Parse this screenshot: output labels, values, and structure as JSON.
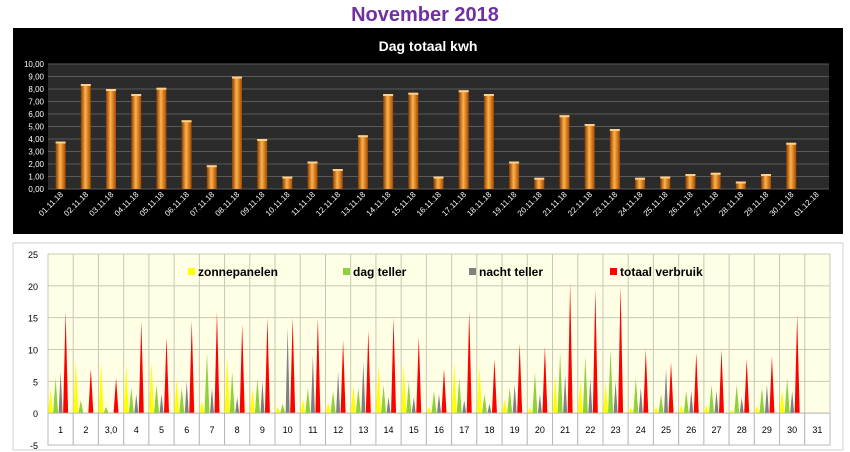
{
  "page": {
    "title": "November 2018",
    "title_color": "#7030A0"
  },
  "chart_data": [
    {
      "type": "bar",
      "title": "Dag totaal kwh",
      "background": "#000000",
      "plot_background": "#2b2b2b",
      "bar_color": "#F08A1C",
      "grid": true,
      "ylim": [
        0,
        10
      ],
      "ytick_labels": [
        "0,00",
        "1,00",
        "2,00",
        "3,00",
        "4,00",
        "5,00",
        "6,00",
        "7,00",
        "8,00",
        "9,00",
        "10,00"
      ],
      "categories": [
        "01.11.18",
        "02.11.18",
        "03.11.18",
        "04.11.18",
        "05.11.18",
        "06.11.18",
        "07.11.18",
        "08.11.18",
        "09.11.18",
        "10.11.18",
        "11.11.18",
        "12.11.18",
        "13.11.18",
        "14.11.18",
        "15.11.18",
        "16.11.18",
        "17.11.18",
        "18.11.18",
        "19.11.18",
        "20.11.18",
        "21.11.18",
        "22.11.18",
        "23.11.18",
        "24.11.18",
        "25.11.18",
        "26.11.18",
        "27.11.18",
        "28.11.18",
        "29.11.18",
        "30.11.18",
        "01.12.18"
      ],
      "values": [
        3.8,
        8.4,
        8.0,
        7.6,
        8.1,
        5.5,
        1.9,
        9.0,
        4.0,
        1.0,
        2.2,
        1.6,
        4.3,
        7.6,
        7.7,
        1.0,
        7.9,
        7.6,
        2.2,
        0.9,
        5.9,
        5.2,
        4.8,
        0.9,
        1.0,
        1.2,
        1.3,
        0.6,
        1.2,
        3.7,
        0
      ]
    },
    {
      "type": "area",
      "background": "#FFFFE6",
      "grid": true,
      "ylim": [
        -5,
        25
      ],
      "yticks": [
        -5,
        0,
        5,
        10,
        15,
        20,
        25
      ],
      "categories": [
        "1",
        "2",
        "3,0",
        "4",
        "5",
        "6",
        "7",
        "8",
        "9",
        "10",
        "11",
        "12",
        "13",
        "14",
        "15",
        "16",
        "17",
        "18",
        "19",
        "20",
        "21",
        "22",
        "23",
        "24",
        "25",
        "26",
        "27",
        "28",
        "29",
        "30",
        "31"
      ],
      "legend": [
        {
          "label": "zonnepanelen",
          "color": "#FFFF00"
        },
        {
          "label": "dag teller",
          "color": "#8FD13B"
        },
        {
          "label": "nacht teller",
          "color": "#808080"
        },
        {
          "label": "totaal verbruik",
          "color": "#FF0000"
        }
      ],
      "series": [
        {
          "name": "zonnepanelen",
          "values": [
            3.8,
            8.4,
            8.0,
            7.6,
            8.1,
            5.5,
            1.9,
            9.0,
            4.0,
            1.0,
            2.2,
            1.6,
            4.3,
            7.6,
            7.7,
            1.0,
            7.9,
            7.6,
            2.2,
            0.9,
            5.9,
            5.2,
            4.8,
            0.9,
            1.0,
            1.2,
            1.3,
            0.6,
            1.2,
            3.7,
            0
          ]
        },
        {
          "name": "dag teller",
          "values": [
            5.5,
            2.0,
            1.0,
            4.0,
            4.5,
            4.0,
            9.5,
            6.5,
            5.5,
            1.5,
            4.0,
            3.5,
            4.0,
            4.5,
            5.0,
            3.5,
            5.5,
            3.0,
            4.0,
            6.5,
            9.5,
            9.0,
            10.0,
            5.5,
            3.0,
            3.5,
            4.5,
            4.5,
            4.0,
            5.5,
            0
          ]
        },
        {
          "name": "nacht teller",
          "values": [
            6.5,
            -1.0,
            -1.0,
            3.0,
            3.0,
            5.0,
            4.0,
            2.5,
            5.0,
            13.5,
            9.0,
            6.5,
            8.0,
            2.5,
            2.5,
            3.0,
            2.0,
            1.5,
            4.5,
            3.0,
            6.0,
            5.5,
            5.0,
            4.0,
            7.0,
            3.5,
            3.5,
            2.5,
            4.5,
            3.5,
            0
          ]
        },
        {
          "name": "totaal verbruik",
          "values": [
            16.0,
            7.0,
            5.5,
            14.5,
            12.0,
            14.5,
            16.0,
            14.0,
            15.0,
            15.0,
            15.0,
            11.5,
            13.0,
            15.0,
            12.0,
            7.0,
            16.0,
            8.5,
            11.0,
            10.5,
            20.5,
            19.5,
            20.0,
            10.0,
            8.0,
            9.5,
            10.0,
            8.5,
            9.0,
            15.5,
            0
          ]
        }
      ]
    }
  ]
}
